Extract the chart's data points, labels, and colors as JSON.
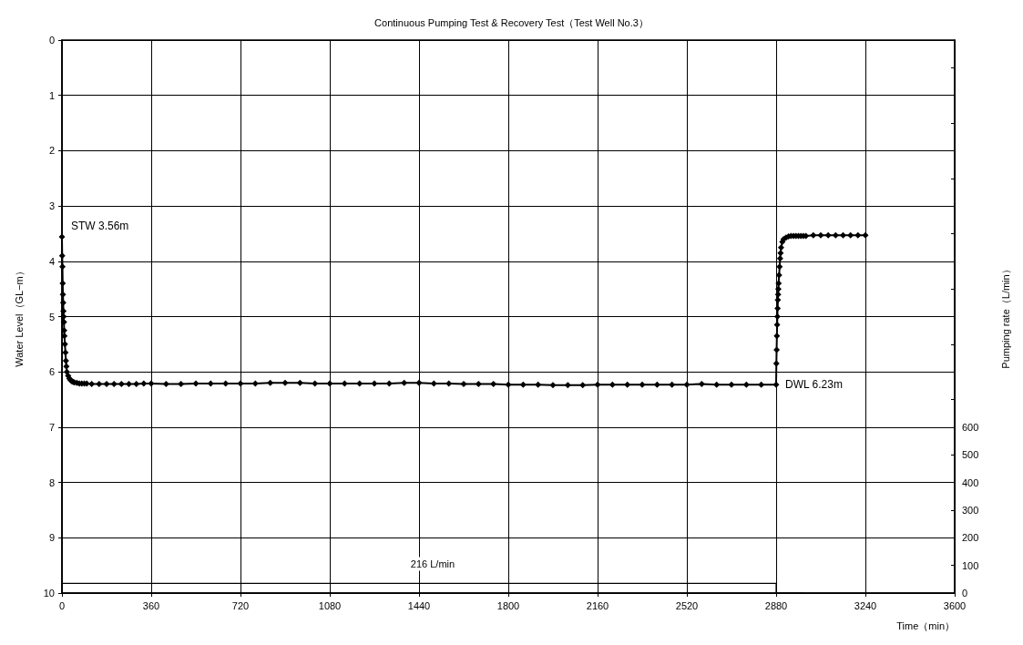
{
  "chart_data": {
    "type": "line",
    "title": "Continuous Pumping Test & Recovery Test（Test Well No.3）",
    "xlabel": "Time（min）",
    "ylabel": "Water Level（GL−m）",
    "y2label": "Pumping rate（L/min）",
    "xlim": [
      0,
      3600
    ],
    "xticks": [
      0,
      360,
      720,
      1080,
      1440,
      1800,
      2160,
      2520,
      2880,
      3240,
      3600
    ],
    "ylim": [
      10,
      0
    ],
    "yticks": [
      0,
      1,
      2,
      3,
      4,
      5,
      6,
      7,
      8,
      9,
      10
    ],
    "y2lim": [
      0,
      2000
    ],
    "y2ticks": [
      0,
      100,
      200,
      300,
      400,
      500,
      600,
      {
        "value": 700,
        "label": null
      },
      {
        "value": 800,
        "label": null
      },
      {
        "value": 900,
        "label": null
      },
      {
        "value": 1000,
        "label": null
      },
      {
        "value": 1100,
        "label": null
      },
      {
        "value": 1200,
        "label": null
      },
      {
        "value": 1300,
        "label": null
      },
      {
        "value": 1400,
        "label": null
      },
      {
        "value": 1500,
        "label": null
      },
      {
        "value": 1600,
        "label": null
      },
      {
        "value": 1700,
        "label": null
      },
      {
        "value": 1800,
        "label": null
      },
      {
        "value": 1900,
        "label": null
      },
      {
        "value": 2000,
        "label": null
      }
    ],
    "grid": true,
    "series": [
      {
        "color": "#000000",
        "marker": "diamond",
        "x": [
          0,
          1,
          2,
          3,
          4,
          5,
          6,
          7,
          8,
          9,
          10,
          12,
          14,
          16,
          18,
          20,
          25,
          30,
          35,
          40,
          45,
          50,
          60,
          70,
          80,
          90,
          100,
          120,
          150,
          180,
          210,
          240,
          270,
          300,
          330,
          360,
          420,
          480,
          540,
          600,
          660,
          720,
          780,
          840,
          900,
          960,
          1020,
          1080,
          1140,
          1200,
          1260,
          1320,
          1380,
          1440,
          1500,
          1560,
          1620,
          1680,
          1740,
          1800,
          1860,
          1920,
          1980,
          2040,
          2100,
          2160,
          2220,
          2280,
          2340,
          2400,
          2460,
          2520,
          2580,
          2640,
          2700,
          2760,
          2820,
          2880,
          2881,
          2882,
          2883,
          2884,
          2885,
          2886,
          2887,
          2888,
          2889,
          2890,
          2892,
          2894,
          2896,
          2898,
          2900,
          2905,
          2910,
          2920,
          2930,
          2940,
          2950,
          2960,
          2970,
          2980,
          2990,
          3000,
          3030,
          3060,
          3090,
          3120,
          3150,
          3180,
          3210,
          3240
        ],
        "values": [
          3.56,
          3.9,
          4.1,
          4.4,
          4.6,
          4.75,
          4.9,
          5.0,
          5.1,
          5.25,
          5.35,
          5.5,
          5.65,
          5.8,
          5.9,
          6.0,
          6.07,
          6.12,
          6.15,
          6.17,
          6.18,
          6.19,
          6.2,
          6.21,
          6.21,
          6.21,
          6.21,
          6.22,
          6.22,
          6.22,
          6.22,
          6.22,
          6.22,
          6.22,
          6.21,
          6.21,
          6.22,
          6.22,
          6.21,
          6.21,
          6.21,
          6.21,
          6.21,
          6.2,
          6.2,
          6.2,
          6.21,
          6.21,
          6.21,
          6.21,
          6.21,
          6.21,
          6.2,
          6.2,
          6.21,
          6.21,
          6.22,
          6.22,
          6.22,
          6.23,
          6.23,
          6.23,
          6.24,
          6.24,
          6.24,
          6.23,
          6.23,
          6.23,
          6.23,
          6.23,
          6.23,
          6.23,
          6.22,
          6.23,
          6.23,
          6.23,
          6.23,
          6.23,
          5.85,
          5.6,
          5.35,
          5.15,
          5.0,
          4.85,
          4.7,
          4.6,
          4.5,
          4.4,
          4.25,
          4.1,
          3.95,
          3.85,
          3.75,
          3.65,
          3.6,
          3.57,
          3.55,
          3.54,
          3.54,
          3.54,
          3.54,
          3.54,
          3.54,
          3.54,
          3.53,
          3.53,
          3.53,
          3.53,
          3.53,
          3.53,
          3.53,
          3.53
        ]
      },
      {
        "color": "#000000",
        "marker": "none",
        "axis": "y2",
        "x": [
          0,
          0,
          2880,
          2880,
          2990
        ],
        "values": [
          0,
          35,
          35,
          0,
          0
        ]
      }
    ],
    "annotations": [
      {
        "text": "STW 3.56m",
        "x": 0,
        "y": 3.56
      },
      {
        "text": "DWL 6.23m",
        "x": 2880,
        "y": 6.23
      },
      "216 L/min"
    ]
  }
}
